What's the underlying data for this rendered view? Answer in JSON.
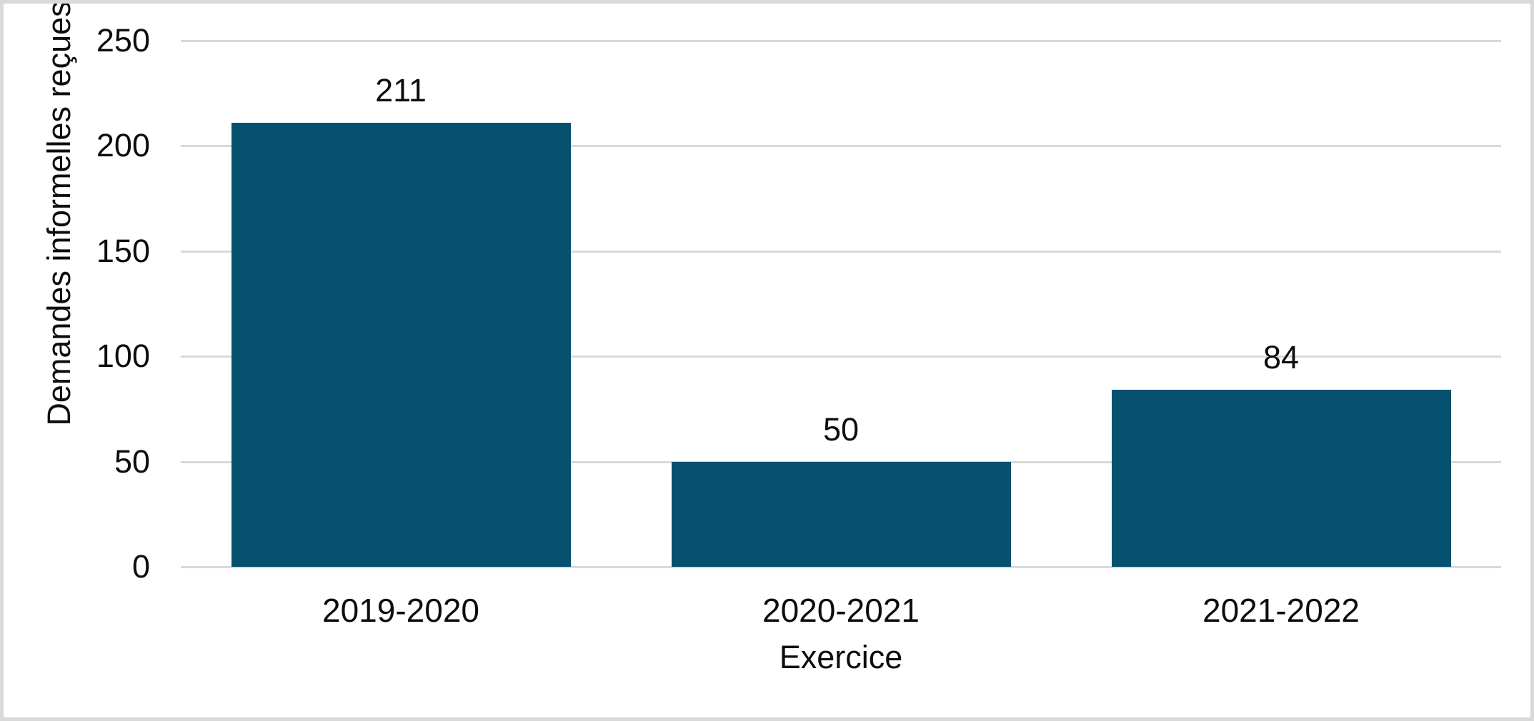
{
  "chart_data": {
    "type": "bar",
    "title": "",
    "categories": [
      "2019-2020",
      "2020-2021",
      "2021-2022"
    ],
    "values": [
      211,
      50,
      84
    ],
    "data_labels": [
      "211",
      "50",
      "84"
    ],
    "xlabel": "Exercice",
    "ylabel": "Demandes informelles reçues",
    "yticks": [
      0,
      50,
      100,
      150,
      200,
      250
    ],
    "ylim": [
      0,
      250
    ],
    "grid": "horizontal-gridlines-on",
    "legend_position": "none",
    "bar_color": "#05516F",
    "gridline_color": "#D9D9D9",
    "frame_color": "#D9D9D9",
    "text_color": "#0D0D0D"
  }
}
